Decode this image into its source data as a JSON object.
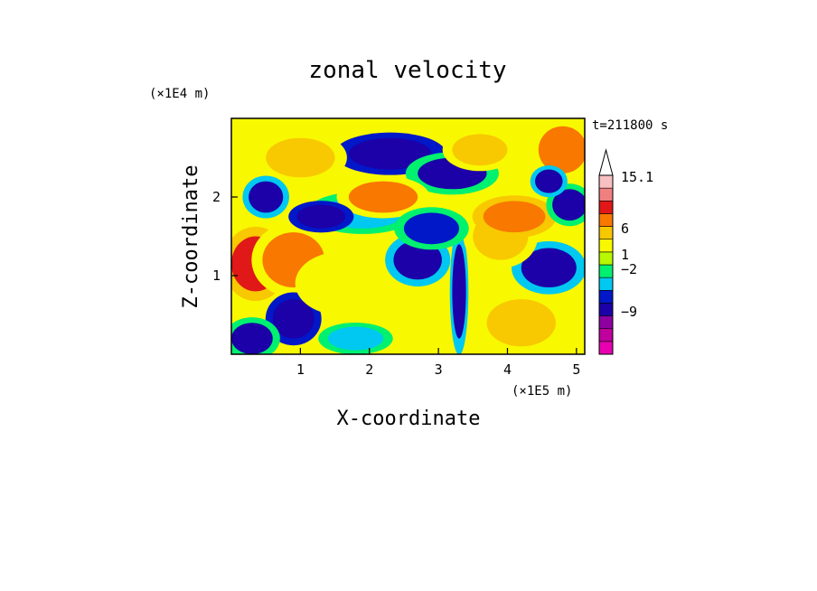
{
  "chart_data": {
    "type": "heatmap",
    "title": "zonal velocity",
    "xlabel": "X-coordinate",
    "ylabel": "Z-coordinate",
    "x_scale_note": "(×1E5 m)",
    "y_scale_note": "(×1E4 m)",
    "time_label": "t=211800 s",
    "xlim": [
      0,
      5.12
    ],
    "ylim": [
      0,
      3.0
    ],
    "x_ticks": [
      1,
      2,
      3,
      4,
      5
    ],
    "y_ticks": [
      1,
      2
    ],
    "grid": false,
    "legend_placement": "right",
    "colorbar": {
      "levels": [
        {
          "color": "#e800b0"
        },
        {
          "color": "#c0009c"
        },
        {
          "color": "#8e00a0"
        },
        {
          "color": "#1c00a8"
        },
        {
          "color": "#0018c8"
        },
        {
          "color": "#00c8f0"
        },
        {
          "color": "#00f070"
        },
        {
          "color": "#b8f800"
        },
        {
          "color": "#f8f800"
        },
        {
          "color": "#f8c800"
        },
        {
          "color": "#f87800"
        },
        {
          "color": "#e01818"
        },
        {
          "color": "#f08080"
        },
        {
          "color": "#f8c0c0"
        }
      ],
      "labels": [
        {
          "text": "15.1",
          "value": 15.1
        },
        {
          "text": "6",
          "value": 6
        },
        {
          "text": "1",
          "value": 1
        },
        {
          "text": "−2",
          "value": -2
        },
        {
          "text": "−9",
          "value": -9
        }
      ]
    },
    "field_blobs": [
      {
        "x": 0.35,
        "y": 1.15,
        "rx": 0.35,
        "ry": 0.35,
        "v": 6
      },
      {
        "x": 0.9,
        "y": 1.2,
        "rx": 0.45,
        "ry": 0.35,
        "v": 4
      },
      {
        "x": 2.3,
        "y": 2.55,
        "rx": 0.6,
        "ry": 0.2,
        "v": -6
      },
      {
        "x": 1.0,
        "y": 2.5,
        "rx": 0.5,
        "ry": 0.25,
        "v": 3
      },
      {
        "x": 2.7,
        "y": 1.2,
        "rx": 0.35,
        "ry": 0.25,
        "v": -5
      },
      {
        "x": 3.2,
        "y": 2.3,
        "rx": 0.5,
        "ry": 0.2,
        "v": -4
      },
      {
        "x": 4.8,
        "y": 2.6,
        "rx": 0.35,
        "ry": 0.3,
        "v": 4
      },
      {
        "x": 4.6,
        "y": 1.1,
        "rx": 0.4,
        "ry": 0.25,
        "v": -5
      },
      {
        "x": 0.9,
        "y": 0.45,
        "rx": 0.3,
        "ry": 0.25,
        "v": -6
      },
      {
        "x": 1.6,
        "y": 0.9,
        "rx": 0.5,
        "ry": 0.3,
        "v": 1
      },
      {
        "x": 2.4,
        "y": 0.45,
        "rx": 0.6,
        "ry": 0.3,
        "v": 1
      },
      {
        "x": 3.3,
        "y": 0.8,
        "rx": 0.1,
        "ry": 0.6,
        "v": -5
      },
      {
        "x": 3.9,
        "y": 1.5,
        "rx": 0.4,
        "ry": 0.3,
        "v": 2
      },
      {
        "x": 4.2,
        "y": 0.4,
        "rx": 0.5,
        "ry": 0.3,
        "v": 3
      },
      {
        "x": 1.9,
        "y": 1.8,
        "rx": 0.6,
        "ry": 0.2,
        "v": -2
      },
      {
        "x": 2.2,
        "y": 2.0,
        "rx": 0.5,
        "ry": 0.2,
        "v": 4
      },
      {
        "x": 4.1,
        "y": 1.75,
        "rx": 0.45,
        "ry": 0.2,
        "v": 5
      },
      {
        "x": 0.3,
        "y": 0.2,
        "rx": 0.3,
        "ry": 0.2,
        "v": -4
      },
      {
        "x": 1.3,
        "y": 1.75,
        "rx": 0.35,
        "ry": 0.15,
        "v": -6
      },
      {
        "x": 0.5,
        "y": 2.0,
        "rx": 0.25,
        "ry": 0.2,
        "v": -5
      },
      {
        "x": 2.9,
        "y": 1.6,
        "rx": 0.4,
        "ry": 0.2,
        "v": -3
      },
      {
        "x": 3.6,
        "y": 2.6,
        "rx": 0.4,
        "ry": 0.2,
        "v": 3
      },
      {
        "x": 4.9,
        "y": 1.9,
        "rx": 0.25,
        "ry": 0.2,
        "v": -4
      },
      {
        "x": 1.8,
        "y": 0.2,
        "rx": 0.4,
        "ry": 0.15,
        "v": -2
      },
      {
        "x": 4.6,
        "y": 2.2,
        "rx": 0.2,
        "ry": 0.15,
        "v": -5
      }
    ]
  }
}
